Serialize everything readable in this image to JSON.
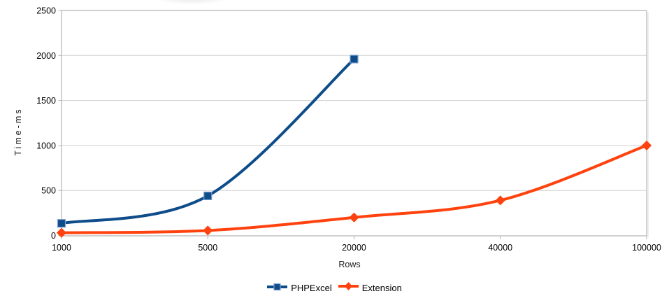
{
  "chart_data": {
    "type": "line",
    "title": "",
    "xlabel": "Rows",
    "ylabel": "Time-ms",
    "categories": [
      "1000",
      "5000",
      "20000",
      "40000",
      "100000"
    ],
    "yticks": [
      0,
      500,
      1000,
      1500,
      2000,
      2500
    ],
    "ylim": [
      0,
      2500
    ],
    "grid": "horizontal",
    "legend_position": "bottom-center",
    "line_style": "smooth",
    "series": [
      {
        "name": "PHPExcel",
        "color": "#0e4c8a",
        "marker": "square",
        "marker_border": "#7ba0cc",
        "values": [
          135,
          440,
          1960,
          null,
          null
        ]
      },
      {
        "name": "Extension",
        "color": "#ff420e",
        "marker": "diamond",
        "marker_border": "#ff420e",
        "values": [
          30,
          55,
          200,
          390,
          1000
        ]
      }
    ]
  }
}
